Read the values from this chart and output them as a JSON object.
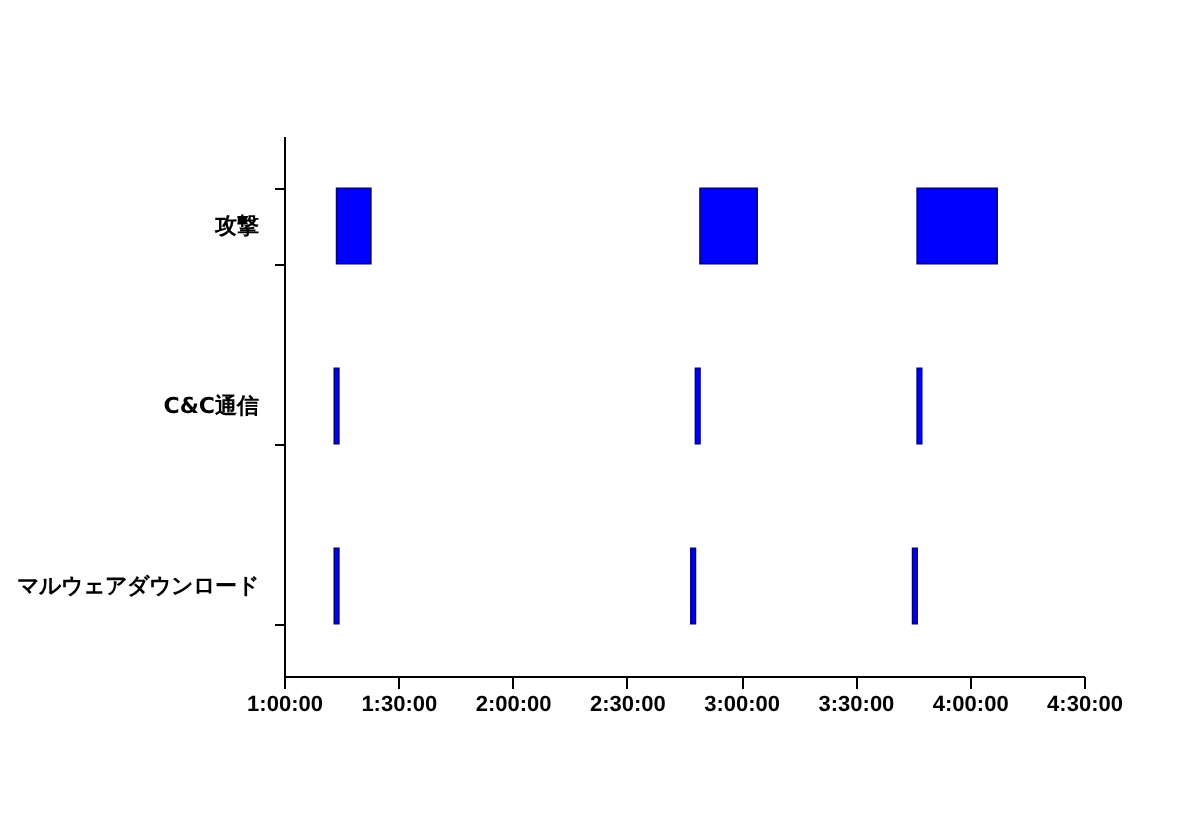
{
  "chart_data": {
    "type": "bar",
    "orientation": "horizontal",
    "categories": [
      "攻撃",
      "C&C通信",
      "マルウェアダウンロード"
    ],
    "series": [
      {
        "color": "#0000ff",
        "base": [
          1.23,
          1.22,
          1.22
        ],
        "values": [
          0.15,
          0.02,
          0.02
        ]
      },
      {
        "color": "#0000ff",
        "base": [
          2.82,
          2.8,
          2.78
        ],
        "values": [
          0.25,
          0.02,
          0.02
        ]
      },
      {
        "color": "#0000ff",
        "base": [
          3.77,
          3.77,
          3.75
        ],
        "values": [
          0.35,
          0.02,
          0.02
        ]
      }
    ],
    "xlim": [
      1,
      4.5
    ],
    "xticks": [
      {
        "value": 1,
        "label": "1:00:00"
      },
      {
        "value": 1.5,
        "label": "1:30:00"
      },
      {
        "value": 2,
        "label": "2:00:00"
      },
      {
        "value": 2.5,
        "label": "2:30:00"
      },
      {
        "value": 3,
        "label": "3:00:00"
      },
      {
        "value": 3.5,
        "label": "3:30:00"
      },
      {
        "value": 4,
        "label": "4:00:00"
      },
      {
        "value": 4.5,
        "label": "4:30:00"
      }
    ],
    "grid": false
  }
}
